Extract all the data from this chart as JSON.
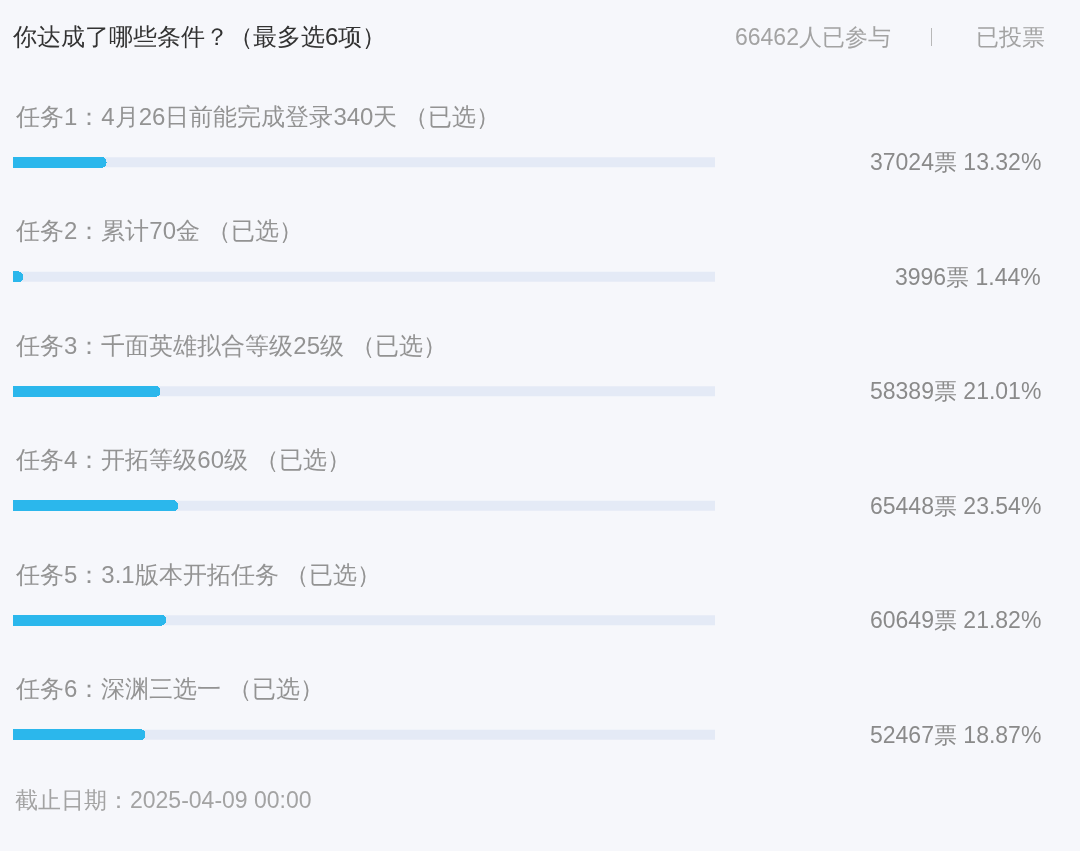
{
  "chart_data": {
    "type": "bar",
    "orientation": "horizontal",
    "title": "你达成了哪些条件？（最多选6项）",
    "categories": [
      "任务1：4月26日前能完成登录340天 （已选）",
      "任务2：累计70金 （已选）",
      "任务3：千面英雄拟合等级25级 （已选）",
      "任务4：开拓等级60级 （已选）",
      "任务5：3.1版本开拓任务 （已选）",
      "任务6：深渊三选一 （已选）"
    ],
    "values": [
      13.32,
      1.44,
      21.01,
      23.54,
      21.82,
      18.87
    ],
    "value_labels": [
      "37024票 13.32%",
      "3996票 1.44%",
      "58389票 21.01%",
      "65448票 23.54%",
      "60649票 21.82%",
      "52467票 18.87%"
    ],
    "color": "#2bb7ec",
    "xlim": [
      0,
      100
    ],
    "tick_labels": "y",
    "annotations": [
      "66462人已参与",
      "已投票",
      "截止日期：2025-04-09 00:00"
    ]
  }
}
